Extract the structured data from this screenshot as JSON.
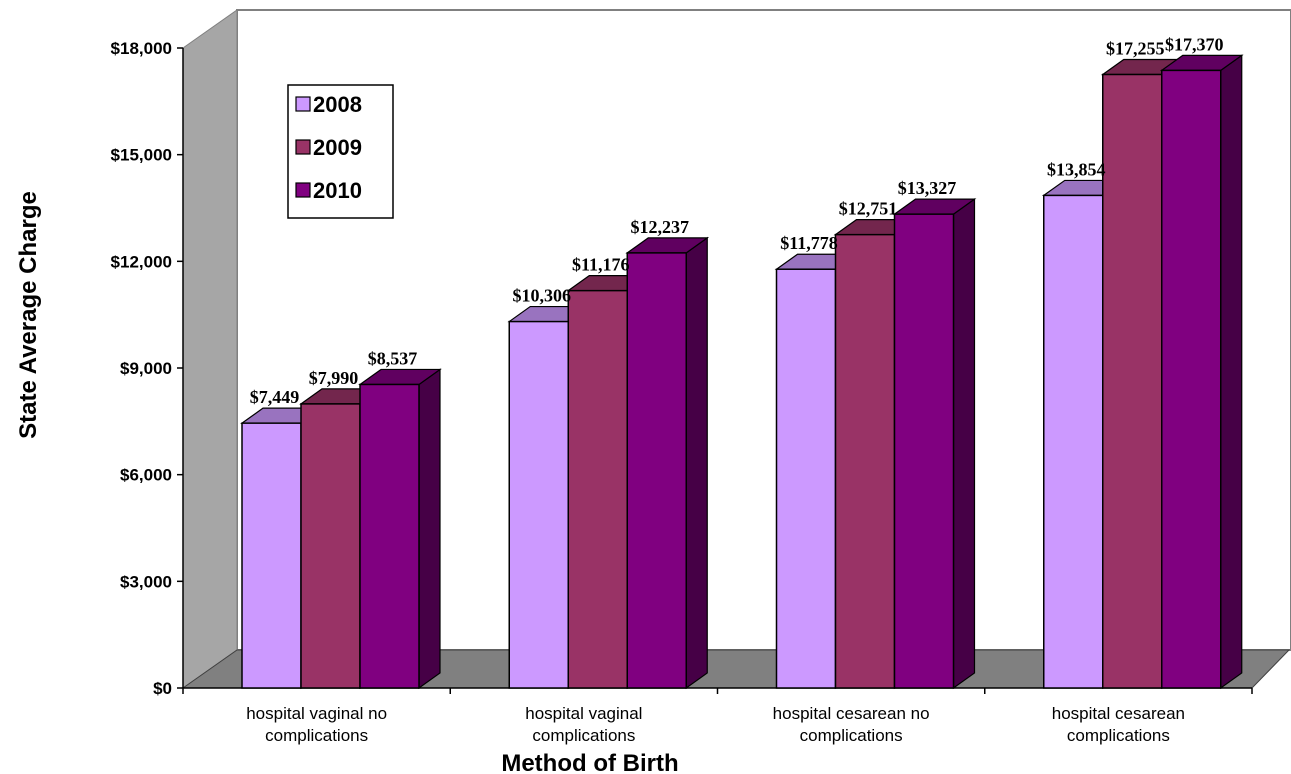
{
  "chart_data": {
    "type": "bar",
    "title": "",
    "xlabel": "Method of Birth",
    "ylabel": "State Average Charge",
    "ylim": [
      0,
      18000
    ],
    "yticks": [
      "$0",
      "$3,000",
      "$6,000",
      "$9,000",
      "$12,000",
      "$15,000",
      "$18,000"
    ],
    "categories": [
      [
        "hospital vaginal no",
        "complications"
      ],
      [
        "hospital vaginal",
        "complications"
      ],
      [
        "hospital cesarean no",
        "complications"
      ],
      [
        "hospital cesarean",
        "complications"
      ]
    ],
    "series": [
      {
        "name": "2008",
        "values": [
          7449,
          10306,
          11778,
          13854
        ],
        "labels": [
          "$7,449",
          "$10,306",
          "$11,778",
          "$13,854"
        ],
        "color": "#cc99ff"
      },
      {
        "name": "2009",
        "values": [
          7990,
          11176,
          12751,
          17255
        ],
        "labels": [
          "$7,990",
          "$11,176",
          "$12,751",
          "$17,255"
        ],
        "color": "#993366"
      },
      {
        "name": "2010",
        "values": [
          8537,
          12237,
          13327,
          17370
        ],
        "labels": [
          "$8,537",
          "$12,237",
          "$13,327",
          "$17,370"
        ],
        "color": "#800080"
      }
    ],
    "legend_position": "top-left",
    "grid": false,
    "style": "3d"
  }
}
